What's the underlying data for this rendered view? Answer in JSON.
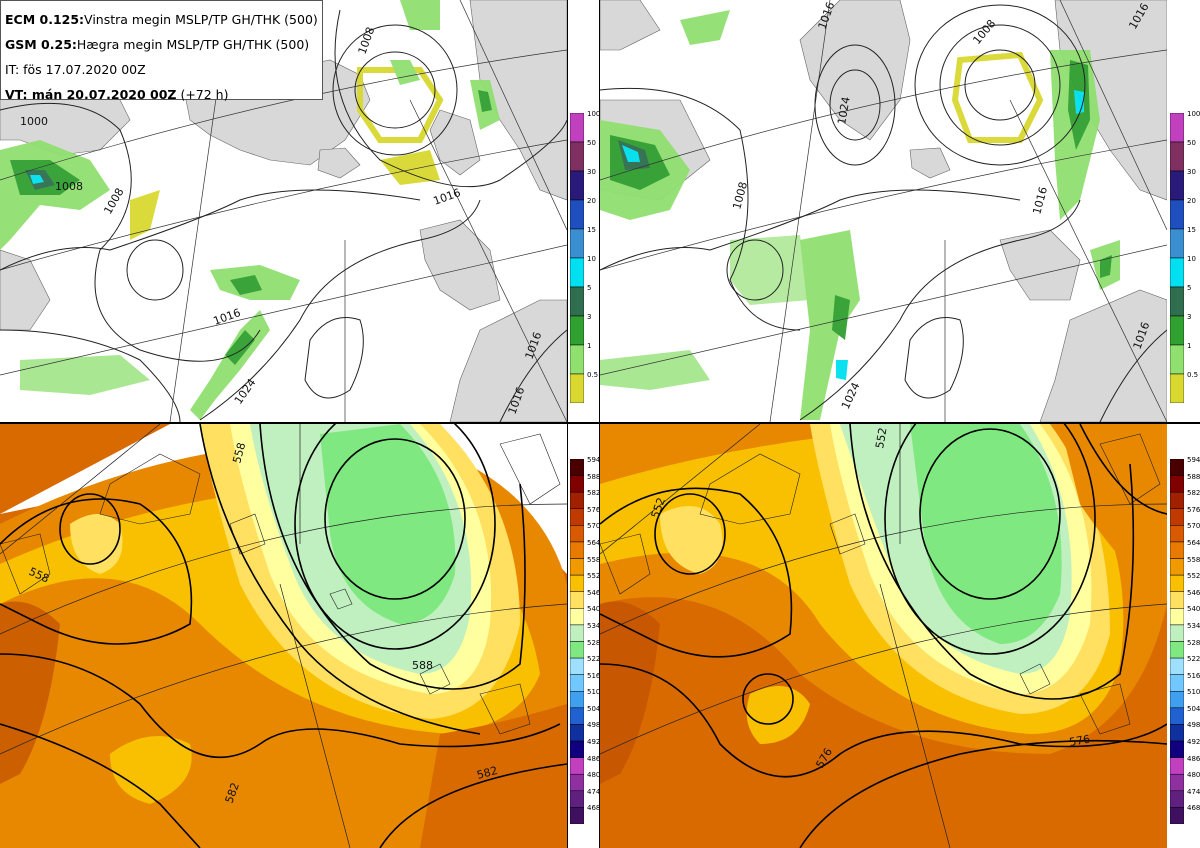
{
  "info": {
    "line1_model": "ECM 0.125:",
    "line1_text": "Vinstra megin MSLP/TP GH/THK (500)",
    "line2_model": "GSM 0.25:",
    "line2_text": "Hægra megin MSLP/TP GH/THK (500)",
    "line3": "IT: fös 17.07.2020 00Z",
    "line4_bold": "VT: mán 20.07.2020 00Z",
    "line4_rest": " (+72 h)"
  },
  "precip_legend": {
    "labels": [
      "100",
      "50",
      "30",
      "20",
      "15",
      "10",
      "5",
      "3",
      "1",
      "0.5"
    ],
    "colors": [
      "#c040c0",
      "#803060",
      "#2a1a7a",
      "#1f4fbf",
      "#3a8fd0",
      "#00e0f0",
      "#2f6f4f",
      "#30a030",
      "#90e070",
      "#d8d830"
    ]
  },
  "thk_legend": {
    "labels": [
      "594",
      "588",
      "582",
      "576",
      "570",
      "564",
      "558",
      "552",
      "546",
      "540",
      "534",
      "528",
      "522",
      "516",
      "510",
      "504",
      "498",
      "492",
      "486",
      "480",
      "474",
      "468"
    ],
    "colors": [
      "#4a0000",
      "#800000",
      "#a02000",
      "#c03a00",
      "#d85a00",
      "#e87a00",
      "#f09a00",
      "#f8c000",
      "#ffe060",
      "#ffffa0",
      "#c0f0c0",
      "#80e880",
      "#a0e0ff",
      "#70c8ff",
      "#40a0f0",
      "#2060d0",
      "#1030a0",
      "#100080",
      "#c040c0",
      "#9030a0",
      "#602080",
      "#401060"
    ]
  },
  "contour_labels": {
    "tl": [
      "1000",
      "1008",
      "1008",
      "1016",
      "1016",
      "1024",
      "1016",
      "1008",
      "1016"
    ],
    "tr": [
      "1016",
      "1008",
      "1024",
      "1008",
      "1016",
      "1024",
      "1016",
      "1016"
    ],
    "bl": [
      "558",
      "558",
      "588",
      "582"
    ],
    "br": [
      "552",
      "552",
      "576",
      "576"
    ]
  }
}
